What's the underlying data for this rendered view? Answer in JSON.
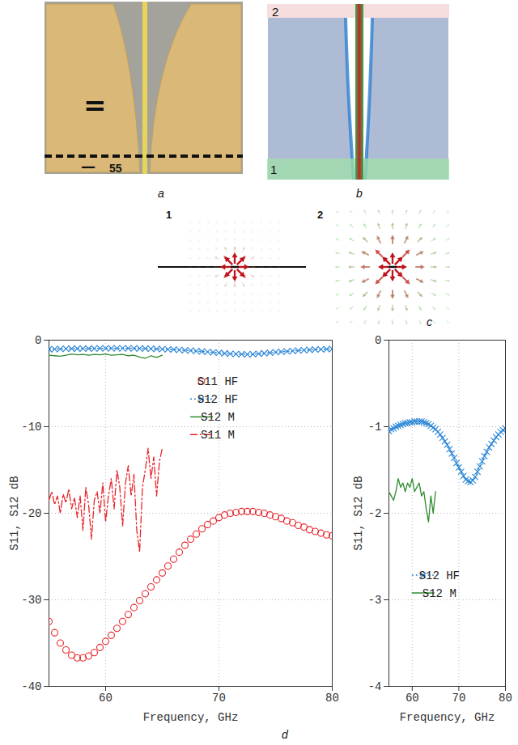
{
  "panels": {
    "a": {
      "label": "a",
      "texts": [
        "=",
        "—",
        "55"
      ]
    },
    "b": {
      "label": "b",
      "regions": [
        "1",
        "2"
      ]
    },
    "c": {
      "label": "c",
      "views": [
        "1",
        "2"
      ]
    },
    "d": {
      "label": "d"
    }
  },
  "chart_data": [
    {
      "type": "line",
      "x_label": "Frequency, GHz",
      "y_label": "S11, S12 dB",
      "xlim": [
        55,
        80
      ],
      "xticks": [
        60,
        70,
        80
      ],
      "ylim": [
        -40,
        0
      ],
      "yticks": [
        0,
        -10,
        -20,
        -30,
        -40
      ],
      "grid": true,
      "legend": "right",
      "series": [
        {
          "name": "S11 HF",
          "color": "#e8242a",
          "marker": "circle",
          "line_style": "none",
          "x": [
            55,
            55.5,
            56,
            56.5,
            57,
            57.5,
            58,
            58.5,
            59,
            59.5,
            60,
            60.5,
            61,
            61.5,
            62,
            62.5,
            63,
            63.5,
            64,
            64.5,
            65,
            65.5,
            66,
            66.5,
            67,
            67.5,
            68,
            68.5,
            69,
            69.5,
            70,
            70.5,
            71,
            71.5,
            72,
            72.5,
            73,
            73.5,
            74,
            74.5,
            75,
            75.5,
            76,
            76.5,
            77,
            77.5,
            78,
            78.5,
            79,
            79.5,
            80
          ],
          "values": [
            -32.5,
            -33.8,
            -35,
            -35.8,
            -36.4,
            -36.7,
            -36.7,
            -36.5,
            -36.1,
            -35.5,
            -34.8,
            -34.1,
            -33.3,
            -32.5,
            -31.7,
            -30.9,
            -30.1,
            -29.3,
            -28.5,
            -27.7,
            -26.9,
            -26.1,
            -25.3,
            -24.5,
            -23.7,
            -23.0,
            -22.4,
            -21.8,
            -21.3,
            -20.9,
            -20.5,
            -20.2,
            -20.0,
            -19.9,
            -19.8,
            -19.8,
            -19.8,
            -19.9,
            -20.0,
            -20.2,
            -20.4,
            -20.6,
            -20.9,
            -21.1,
            -21.4,
            -21.6,
            -21.9,
            -22.1,
            -22.3,
            -22.5,
            -22.6
          ]
        },
        {
          "name": "S12 HF",
          "color": "#2b86d6",
          "marker": "x",
          "line_style": "dotted",
          "x": [
            55,
            55.5,
            56,
            56.5,
            57,
            57.5,
            58,
            58.5,
            59,
            59.5,
            60,
            60.5,
            61,
            61.5,
            62,
            62.5,
            63,
            63.5,
            64,
            64.5,
            65,
            65.5,
            66,
            66.5,
            67,
            67.5,
            68,
            68.5,
            69,
            69.5,
            70,
            70.5,
            71,
            71.5,
            72,
            72.5,
            73,
            73.5,
            74,
            74.5,
            75,
            75.5,
            76,
            76.5,
            77,
            77.5,
            78,
            78.5,
            79,
            79.5,
            80
          ],
          "values": [
            -1.05,
            -1.03,
            -1.02,
            -1.0,
            -0.99,
            -0.98,
            -0.97,
            -0.96,
            -0.96,
            -0.95,
            -0.95,
            -0.94,
            -0.94,
            -0.94,
            -0.94,
            -0.95,
            -0.96,
            -0.97,
            -0.99,
            -1.01,
            -1.03,
            -1.06,
            -1.09,
            -1.13,
            -1.17,
            -1.21,
            -1.26,
            -1.31,
            -1.36,
            -1.42,
            -1.47,
            -1.52,
            -1.57,
            -1.61,
            -1.63,
            -1.64,
            -1.62,
            -1.58,
            -1.52,
            -1.46,
            -1.4,
            -1.34,
            -1.29,
            -1.24,
            -1.2,
            -1.16,
            -1.12,
            -1.09,
            -1.06,
            -1.04,
            -1.02
          ]
        },
        {
          "name": "S12 M",
          "color": "#2e8b2e",
          "marker": "none",
          "line_style": "solid",
          "x": [
            55,
            55.5,
            56,
            56.5,
            57,
            57.5,
            58,
            58.5,
            59,
            59.5,
            60,
            60.5,
            61,
            61.5,
            62,
            62.5,
            63,
            63.5,
            64,
            64.5,
            65
          ],
          "values": [
            -1.75,
            -1.8,
            -1.85,
            -1.75,
            -1.6,
            -1.7,
            -1.65,
            -1.75,
            -1.65,
            -1.7,
            -1.6,
            -1.75,
            -1.7,
            -1.65,
            -1.8,
            -1.75,
            -1.95,
            -2.1,
            -1.8,
            -2.0,
            -1.75
          ]
        },
        {
          "name": "S11 M",
          "color": "#e8242a",
          "marker": "none",
          "line_style": "dashdot",
          "x": [
            55,
            55.25,
            55.5,
            55.75,
            56,
            56.25,
            56.5,
            56.75,
            57,
            57.25,
            57.5,
            57.75,
            58,
            58.25,
            58.5,
            58.75,
            59,
            59.25,
            59.5,
            59.75,
            60,
            60.25,
            60.5,
            60.75,
            61,
            61.25,
            61.5,
            61.75,
            62,
            62.25,
            62.5,
            62.75,
            63,
            63.25,
            63.5,
            63.75,
            64,
            64.25,
            64.5,
            64.75,
            65
          ],
          "values": [
            -18.5,
            -17.5,
            -19,
            -18,
            -20,
            -17.8,
            -18.8,
            -17.2,
            -19.5,
            -18.2,
            -20.5,
            -18,
            -22,
            -17,
            -19,
            -23,
            -18.5,
            -17.5,
            -20,
            -16.5,
            -21,
            -18,
            -16,
            -19.5,
            -15,
            -17,
            -21.5,
            -16.5,
            -14.5,
            -18,
            -15.5,
            -22,
            -24.5,
            -17,
            -15,
            -12.5,
            -16,
            -13.5,
            -18,
            -14,
            -12.5
          ]
        }
      ]
    },
    {
      "type": "line",
      "x_label": "Frequency, GHz",
      "y_label": "S11, S12 dB",
      "xlim": [
        55,
        80
      ],
      "xticks": [
        60,
        70,
        80
      ],
      "ylim": [
        -4,
        0
      ],
      "yticks": [
        0,
        -1,
        -2,
        -3,
        -4
      ],
      "grid": true,
      "legend": "bottom-right",
      "series": [
        {
          "name": "S12 HF",
          "color": "#2b86d6",
          "marker": "x",
          "line_style": "dotted",
          "x": [
            55,
            55.5,
            56,
            56.5,
            57,
            57.5,
            58,
            58.5,
            59,
            59.5,
            60,
            60.5,
            61,
            61.5,
            62,
            62.5,
            63,
            63.5,
            64,
            64.5,
            65,
            65.5,
            66,
            66.5,
            67,
            67.5,
            68,
            68.5,
            69,
            69.5,
            70,
            70.5,
            71,
            71.5,
            72,
            72.5,
            73,
            73.5,
            74,
            74.5,
            75,
            75.5,
            76,
            76.5,
            77,
            77.5,
            78,
            78.5,
            79,
            79.5,
            80
          ],
          "values": [
            -1.05,
            -1.03,
            -1.02,
            -1.0,
            -0.99,
            -0.98,
            -0.97,
            -0.96,
            -0.96,
            -0.95,
            -0.95,
            -0.94,
            -0.94,
            -0.94,
            -0.94,
            -0.95,
            -0.96,
            -0.97,
            -0.99,
            -1.01,
            -1.03,
            -1.06,
            -1.09,
            -1.13,
            -1.17,
            -1.21,
            -1.26,
            -1.31,
            -1.36,
            -1.42,
            -1.47,
            -1.52,
            -1.57,
            -1.61,
            -1.63,
            -1.64,
            -1.62,
            -1.58,
            -1.52,
            -1.46,
            -1.4,
            -1.34,
            -1.29,
            -1.24,
            -1.2,
            -1.16,
            -1.12,
            -1.09,
            -1.06,
            -1.04,
            -1.02
          ]
        },
        {
          "name": "S12 M",
          "color": "#2e8b2e",
          "marker": "none",
          "line_style": "solid",
          "x": [
            55,
            55.5,
            56,
            56.5,
            57,
            57.5,
            58,
            58.5,
            59,
            59.5,
            60,
            60.5,
            61,
            61.5,
            62,
            62.5,
            63,
            63.5,
            64,
            64.5,
            65
          ],
          "values": [
            -1.75,
            -1.8,
            -1.85,
            -1.75,
            -1.6,
            -1.7,
            -1.65,
            -1.75,
            -1.65,
            -1.7,
            -1.6,
            -1.75,
            -1.7,
            -1.65,
            -1.8,
            -1.75,
            -1.95,
            -2.1,
            -1.8,
            -2.0,
            -1.75
          ]
        }
      ]
    }
  ]
}
